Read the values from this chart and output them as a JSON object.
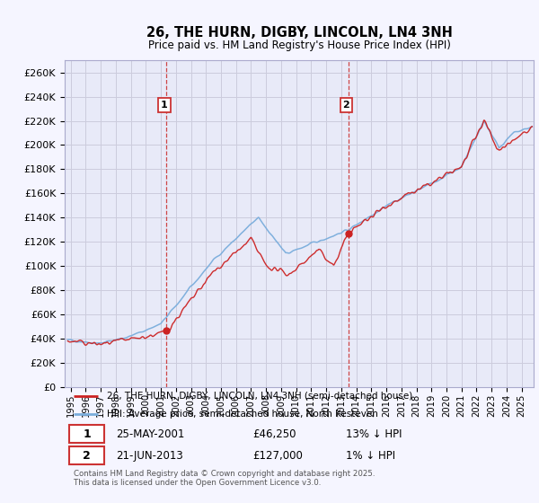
{
  "title": "26, THE HURN, DIGBY, LINCOLN, LN4 3NH",
  "subtitle": "Price paid vs. HM Land Registry's House Price Index (HPI)",
  "legend_line1": "26, THE HURN, DIGBY, LINCOLN, LN4 3NH (semi-detached house)",
  "legend_line2": "HPI: Average price, semi-detached house, North Kesteven",
  "footer": "Contains HM Land Registry data © Crown copyright and database right 2025.\nThis data is licensed under the Open Government Licence v3.0.",
  "sale1_label": "1",
  "sale1_date": "25-MAY-2001",
  "sale1_price": "£46,250",
  "sale1_hpi": "13% ↓ HPI",
  "sale2_label": "2",
  "sale2_date": "21-JUN-2013",
  "sale2_price": "£127,000",
  "sale2_hpi": "1% ↓ HPI",
  "hpi_color": "#7aaddc",
  "price_color": "#cc2222",
  "vline_color": "#cc3333",
  "grid_color": "#ccccdd",
  "background_color": "#f5f5ff",
  "plot_bg_color": "#e8eaf8",
  "ylim": [
    0,
    270000
  ],
  "yticks": [
    0,
    20000,
    40000,
    60000,
    80000,
    100000,
    120000,
    140000,
    160000,
    180000,
    200000,
    220000,
    240000,
    260000
  ],
  "sale1_x": 2001.38,
  "sale1_y": 46250,
  "sale2_x": 2013.47,
  "sale2_y": 127000,
  "xmin": 1994.6,
  "xmax": 2025.8
}
